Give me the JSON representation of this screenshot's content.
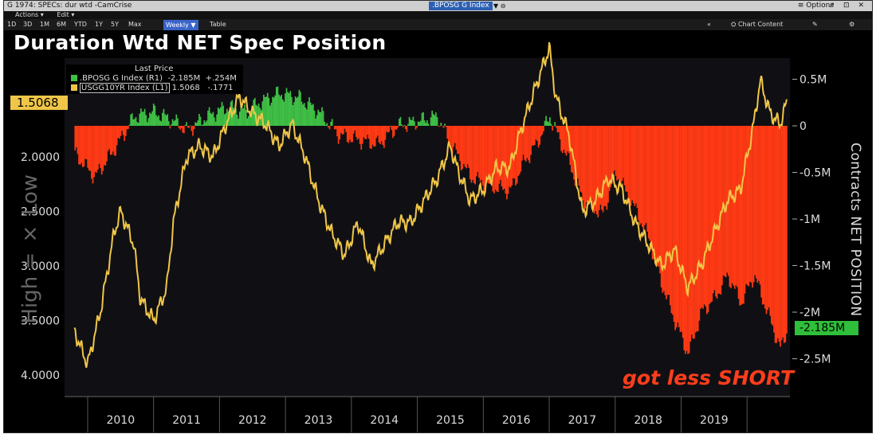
{
  "window": {
    "title": "G 1974: SPECs: dur wtd -CamCrise",
    "ticker_field": ".BPOSG G Index",
    "options_label": "≡ Options",
    "window_controls": "↗ ⊡ ✕"
  },
  "menu": {
    "actions": "Actions ▾",
    "edit": "Edit ▾"
  },
  "toolbar": {
    "periods": [
      "1D",
      "3D",
      "1M",
      "6M",
      "YTD",
      "1Y",
      "5Y",
      "Max"
    ],
    "frequency": "Weekly ▼",
    "table": "Table",
    "collapse": "«",
    "chart_content": "⛭ Chart Content",
    "edit_icon": "✎",
    "gear_icon": "⚙"
  },
  "chart_data": {
    "type": "bar+line",
    "title": "Duration Wtd NET Spec Position",
    "legend_header": "Last Price",
    "series": [
      {
        "name": ".BPOSG G Index (R1)",
        "last": "-2.185M",
        "change": "+.254M",
        "type": "bar",
        "positive_color": "#3fbf45",
        "negative_color": "#ff3a14",
        "axis": "right",
        "x": [
          2009.3,
          2009.6,
          2009.9,
          2010.2,
          2010.5,
          2010.8,
          2011.0,
          2011.3,
          2011.6,
          2011.9,
          2012.1,
          2012.4,
          2012.7,
          2013.0,
          2013.3,
          2013.6,
          2013.9,
          2014.2,
          2014.5,
          2014.8,
          2015.0,
          2015.3,
          2015.6,
          2015.9,
          2016.1,
          2016.3,
          2016.5,
          2016.8,
          2017.0,
          2017.3,
          2017.5,
          2017.8,
          2018.0,
          2018.2,
          2018.4,
          2018.6,
          2018.8,
          2019.0,
          2019.2,
          2019.4,
          2019.6,
          2019.8,
          2020.0,
          2020.1
        ],
        "values": [
          -0.3,
          -0.55,
          -0.25,
          0.1,
          0.15,
          0.05,
          -0.05,
          0.1,
          0.2,
          0.15,
          0.25,
          0.35,
          0.3,
          0.15,
          -0.1,
          -0.15,
          -0.2,
          0.0,
          0.05,
          0.1,
          -0.2,
          -0.55,
          -0.65,
          -0.7,
          -0.4,
          -0.2,
          0.1,
          -0.4,
          -0.8,
          -0.95,
          -0.5,
          -0.9,
          -1.2,
          -1.7,
          -2.1,
          -2.45,
          -2.0,
          -1.85,
          -1.6,
          -1.9,
          -1.6,
          -2.0,
          -2.4,
          -2.185
        ]
      },
      {
        "name": "USGG10YR Index (L1)",
        "last": "1.5068",
        "change": "-.1771",
        "type": "line",
        "color": "#f0c648",
        "axis": "left",
        "x": [
          2009.3,
          2009.5,
          2009.7,
          2009.9,
          2010.0,
          2010.2,
          2010.3,
          2010.5,
          2010.7,
          2010.8,
          2011.0,
          2011.2,
          2011.4,
          2011.6,
          2011.8,
          2012.0,
          2012.2,
          2012.4,
          2012.6,
          2012.8,
          2013.0,
          2013.2,
          2013.4,
          2013.6,
          2013.8,
          2014.0,
          2014.2,
          2014.4,
          2014.6,
          2014.8,
          2015.0,
          2015.1,
          2015.3,
          2015.5,
          2015.7,
          2015.9,
          2016.1,
          2016.3,
          2016.5,
          2016.6,
          2016.8,
          2017.0,
          2017.2,
          2017.4,
          2017.6,
          2017.8,
          2018.0,
          2018.2,
          2018.4,
          2018.6,
          2018.8,
          2019.0,
          2019.2,
          2019.4,
          2019.6,
          2019.7,
          2019.85,
          2020.0,
          2020.1
        ],
        "values": [
          3.6,
          3.9,
          3.4,
          2.7,
          2.5,
          2.8,
          3.3,
          3.5,
          3.2,
          2.6,
          2.0,
          1.9,
          2.0,
          1.7,
          1.45,
          1.6,
          1.7,
          1.9,
          1.7,
          2.0,
          2.4,
          2.7,
          2.9,
          2.6,
          3.0,
          2.8,
          2.6,
          2.6,
          2.4,
          2.2,
          1.9,
          2.1,
          2.4,
          2.3,
          2.1,
          2.1,
          1.7,
          1.35,
          1.0,
          1.45,
          1.8,
          2.5,
          2.4,
          2.2,
          2.3,
          2.6,
          2.8,
          3.0,
          2.85,
          3.2,
          3.0,
          2.7,
          2.4,
          2.3,
          1.7,
          1.3,
          1.6,
          1.7,
          1.5068
        ]
      }
    ],
    "x_categories": [
      "2010",
      "2011",
      "2012",
      "2013",
      "2014",
      "2015",
      "2016",
      "2017",
      "2018",
      "2019"
    ],
    "left_axis": {
      "label": "High = × Low",
      "ticks": [
        "2.0000",
        "2.5000",
        "3.0000",
        "3.5000",
        "4.0000"
      ],
      "tick_values": [
        2.0,
        2.5,
        3.0,
        3.5,
        4.0
      ],
      "inverted": true,
      "current": "1.5068"
    },
    "right_axis": {
      "label": "Contracts NET POSITION",
      "ticks": [
        "0.5M",
        "0",
        "-0.5M",
        "-1M",
        "-1.5M",
        "-2M",
        "-2.5M"
      ],
      "tick_values": [
        0.5,
        0,
        -0.5,
        -1.0,
        -1.5,
        -2.0,
        -2.5
      ],
      "current": "-2.185M"
    },
    "annotation": "got less SHORT"
  }
}
